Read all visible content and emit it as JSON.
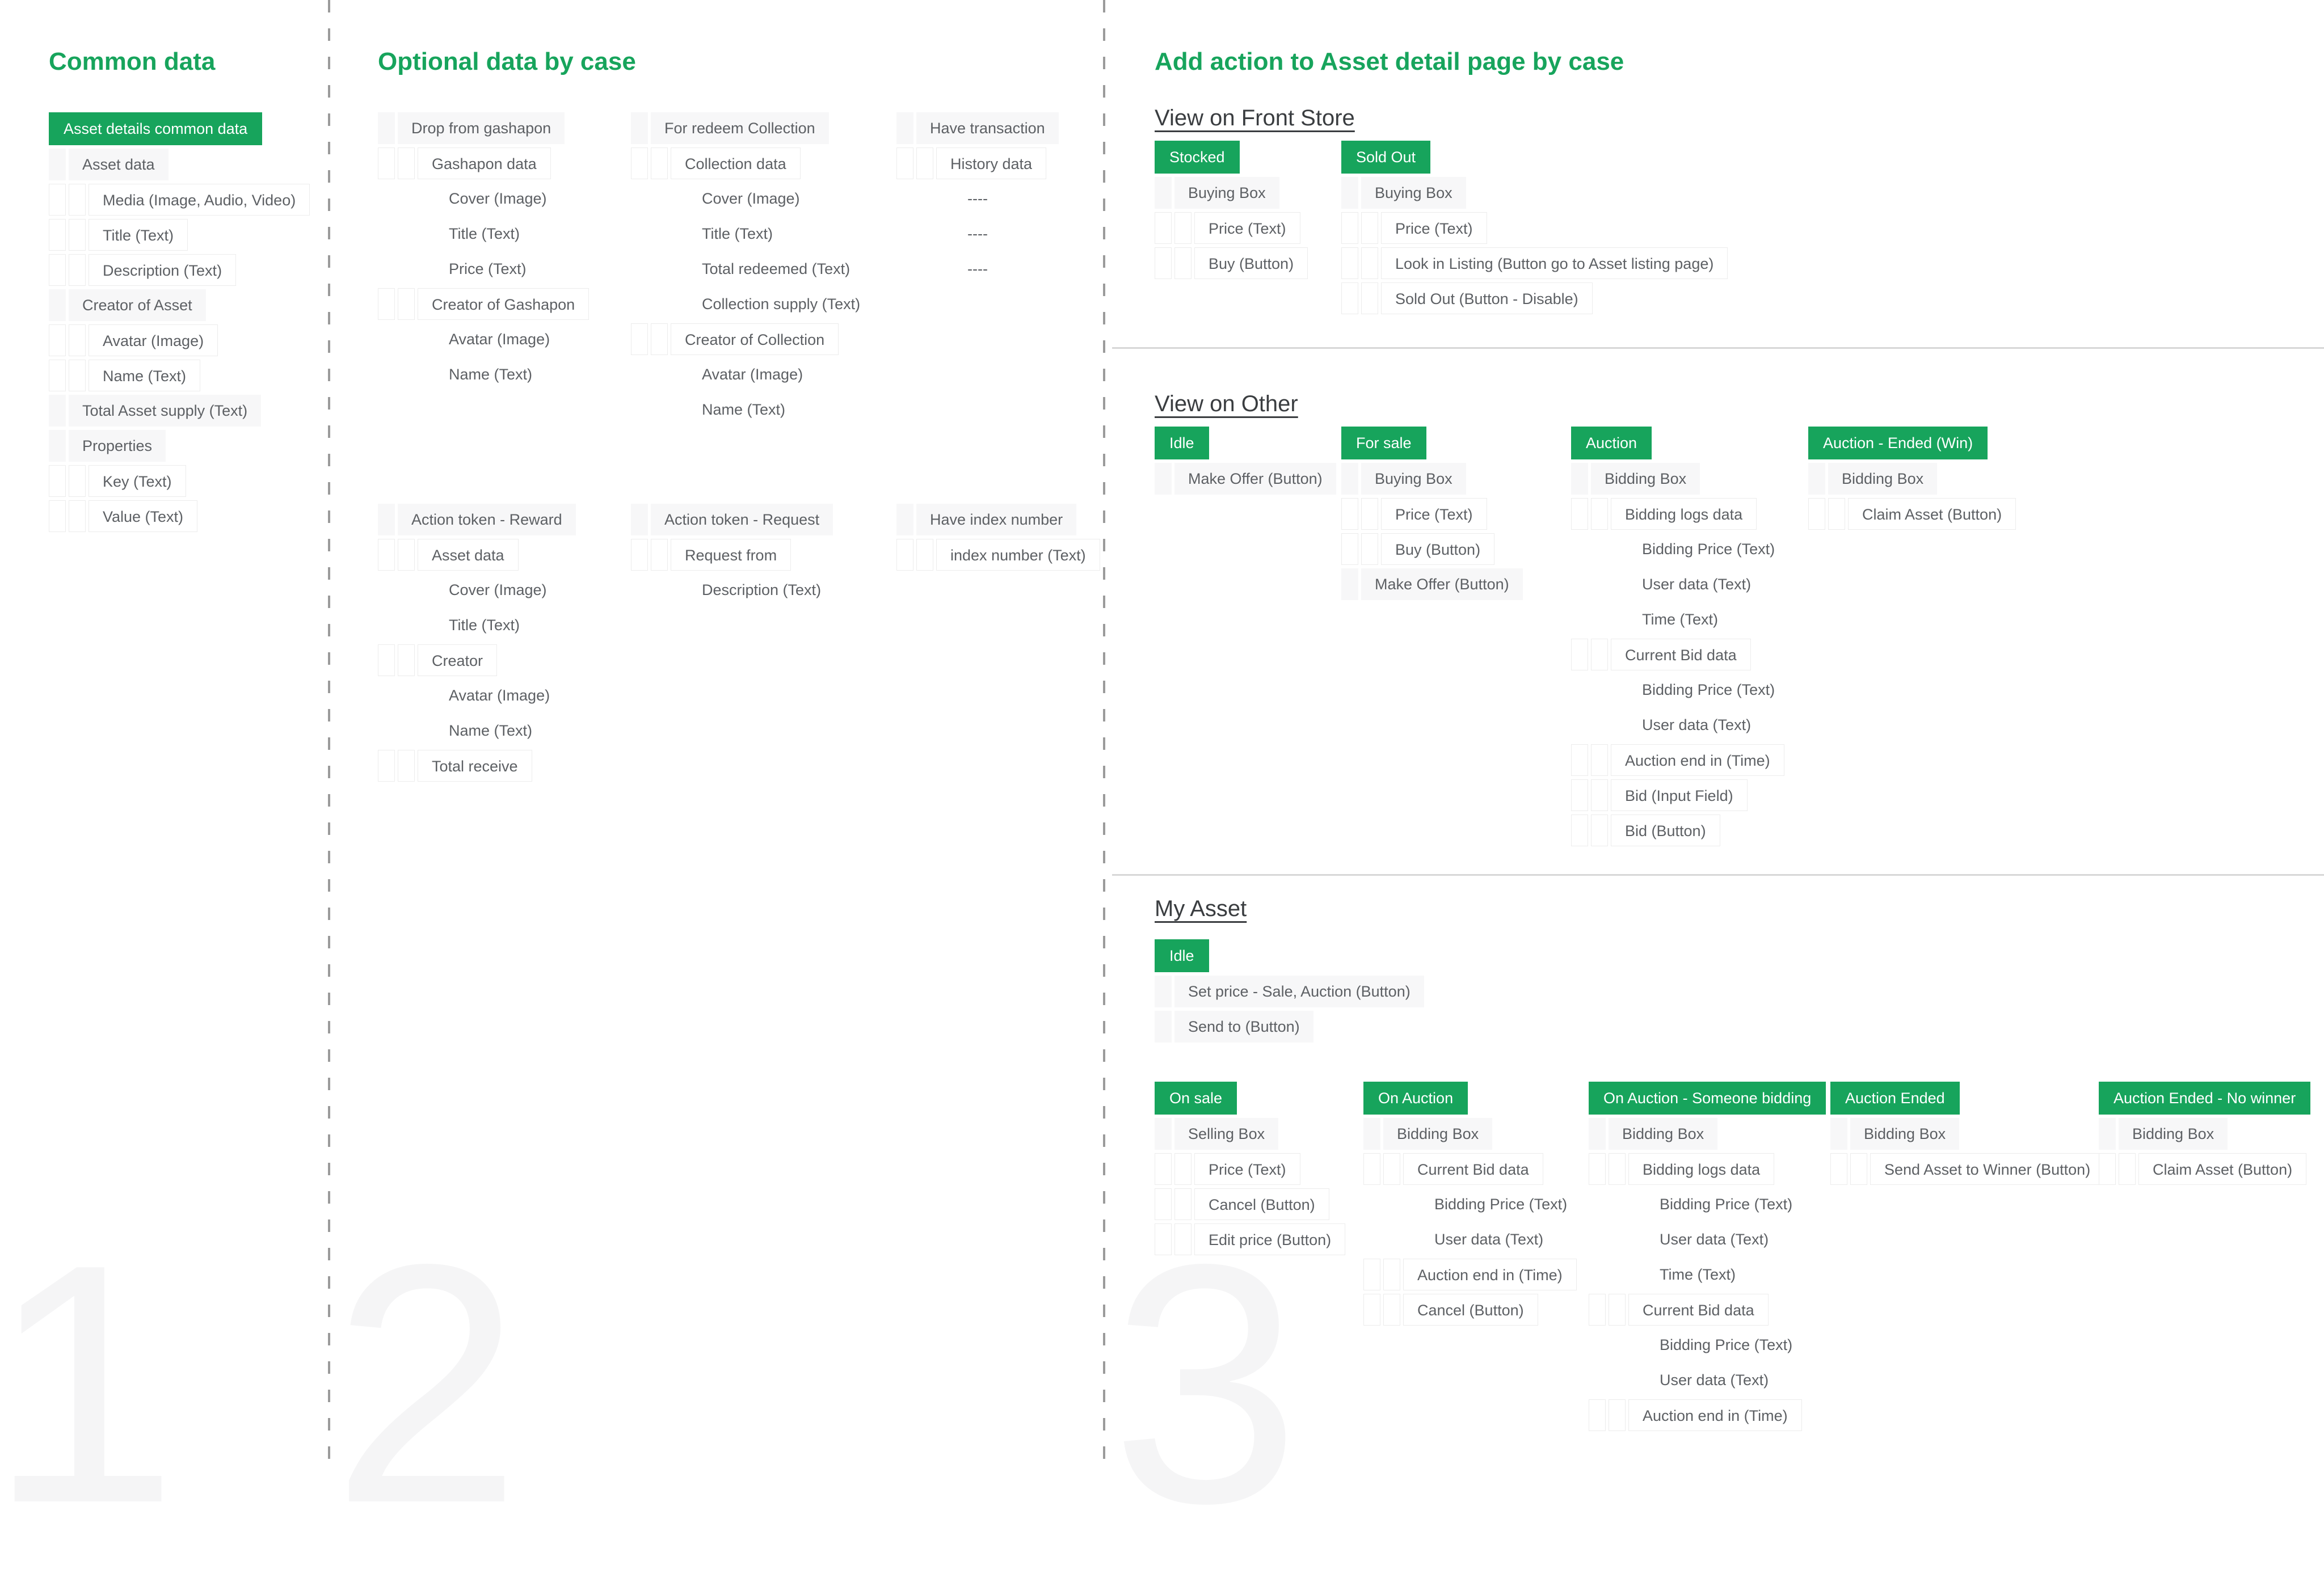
{
  "colors": {
    "accent_green": "#17a45c",
    "row_gray": "#f7f7f8",
    "row_border": "#ececec"
  },
  "background_numbers": [
    "1",
    "2",
    "3"
  ],
  "headings": {
    "col1": "Common data",
    "col2": "Optional data by case",
    "col3": "Add action to Asset detail page by case"
  },
  "section_titles": {
    "front_store": "View on Front Store",
    "other": "View on Other",
    "my_asset": "My Asset"
  },
  "groups": {
    "common": {
      "badge": "Asset details common data",
      "rows": [
        {
          "level": 1,
          "label": "Asset data"
        },
        {
          "level": 2,
          "label": "Media (Image, Audio, Video)"
        },
        {
          "level": 2,
          "label": "Title (Text)"
        },
        {
          "level": 2,
          "label": "Description (Text)"
        },
        {
          "level": 1,
          "label": "Creator of Asset"
        },
        {
          "level": 2,
          "label": "Avatar (Image)"
        },
        {
          "level": 2,
          "label": "Name (Text)"
        },
        {
          "level": 1,
          "label": "Total Asset supply (Text)"
        },
        {
          "level": 1,
          "label": "Properties"
        },
        {
          "level": 2,
          "label": "Key (Text)"
        },
        {
          "level": 2,
          "label": "Value (Text)"
        }
      ]
    },
    "gashapon": {
      "rows": [
        {
          "level": 1,
          "label": "Drop from gashapon"
        },
        {
          "level": 2,
          "label": "Gashapon data"
        },
        {
          "level": 3,
          "label": "Cover (Image)"
        },
        {
          "level": 3,
          "label": "Title (Text)"
        },
        {
          "level": 3,
          "label": "Price (Text)"
        },
        {
          "level": 2,
          "label": "Creator of Gashapon"
        },
        {
          "level": 3,
          "label": "Avatar (Image)"
        },
        {
          "level": 3,
          "label": "Name (Text)"
        }
      ]
    },
    "collection": {
      "rows": [
        {
          "level": 1,
          "label": "For redeem Collection"
        },
        {
          "level": 2,
          "label": "Collection data"
        },
        {
          "level": 3,
          "label": "Cover (Image)"
        },
        {
          "level": 3,
          "label": "Title (Text)"
        },
        {
          "level": 3,
          "label": "Total redeemed (Text)"
        },
        {
          "level": 3,
          "label": "Collection supply (Text)"
        },
        {
          "level": 2,
          "label": "Creator of Collection"
        },
        {
          "level": 3,
          "label": "Avatar (Image)"
        },
        {
          "level": 3,
          "label": "Name (Text)"
        }
      ]
    },
    "transaction": {
      "rows": [
        {
          "level": 1,
          "label": "Have transaction"
        },
        {
          "level": 2,
          "label": "History data"
        },
        {
          "level": 3,
          "label": "----"
        },
        {
          "level": 3,
          "label": "----"
        },
        {
          "level": 3,
          "label": "----"
        }
      ]
    },
    "reward": {
      "rows": [
        {
          "level": 1,
          "label": "Action token - Reward"
        },
        {
          "level": 2,
          "label": "Asset data"
        },
        {
          "level": 3,
          "label": "Cover (Image)"
        },
        {
          "level": 3,
          "label": "Title (Text)"
        },
        {
          "level": 2,
          "label": "Creator"
        },
        {
          "level": 3,
          "label": "Avatar (Image)"
        },
        {
          "level": 3,
          "label": "Name (Text)"
        },
        {
          "level": 2,
          "label": "Total receive"
        }
      ]
    },
    "request": {
      "rows": [
        {
          "level": 1,
          "label": "Action token - Request"
        },
        {
          "level": 2,
          "label": "Request from"
        },
        {
          "level": 3,
          "label": "Description (Text)"
        }
      ]
    },
    "index": {
      "rows": [
        {
          "level": 1,
          "label": "Have index number"
        },
        {
          "level": 2,
          "label": "index number (Text)"
        }
      ]
    },
    "stocked": {
      "badge": "Stocked",
      "rows": [
        {
          "level": 1,
          "label": "Buying Box"
        },
        {
          "level": 2,
          "label": "Price (Text)"
        },
        {
          "level": 2,
          "label": "Buy (Button)"
        }
      ]
    },
    "soldout": {
      "badge": "Sold Out",
      "rows": [
        {
          "level": 1,
          "label": "Buying Box"
        },
        {
          "level": 2,
          "label": "Price (Text)"
        },
        {
          "level": 2,
          "label": "Look in Listing (Button go to Asset listing page)"
        },
        {
          "level": 2,
          "label": "Sold Out (Button - Disable)"
        }
      ]
    },
    "idle_other": {
      "badge": "Idle",
      "rows": [
        {
          "level": 1,
          "label": "Make Offer (Button)"
        }
      ]
    },
    "forsale": {
      "badge": "For sale",
      "rows": [
        {
          "level": 1,
          "label": "Buying Box"
        },
        {
          "level": 2,
          "label": "Price (Text)"
        },
        {
          "level": 2,
          "label": "Buy (Button)"
        },
        {
          "level": 1,
          "label": "Make Offer (Button)"
        }
      ]
    },
    "auction": {
      "badge": "Auction",
      "rows": [
        {
          "level": 1,
          "label": "Bidding Box"
        },
        {
          "level": 2,
          "label": "Bidding logs data"
        },
        {
          "level": 3,
          "label": "Bidding Price (Text)"
        },
        {
          "level": 3,
          "label": "User data (Text)"
        },
        {
          "level": 3,
          "label": "Time (Text)"
        },
        {
          "level": 2,
          "label": "Current Bid data"
        },
        {
          "level": 3,
          "label": "Bidding Price (Text)"
        },
        {
          "level": 3,
          "label": "User data (Text)"
        },
        {
          "level": 2,
          "label": "Auction end in  (Time)"
        },
        {
          "level": 2,
          "label": "Bid (Input Field)"
        },
        {
          "level": 2,
          "label": "Bid (Button)"
        }
      ]
    },
    "auction_ended_win": {
      "badge": "Auction - Ended (Win)",
      "rows": [
        {
          "level": 1,
          "label": "Bidding Box"
        },
        {
          "level": 2,
          "label": "Claim Asset (Button)"
        }
      ]
    },
    "idle_myasset": {
      "badge": "Idle",
      "rows": [
        {
          "level": 1,
          "label": "Set price - Sale, Auction (Button)"
        },
        {
          "level": 1,
          "label": "Send to (Button)"
        }
      ]
    },
    "onsale": {
      "badge": "On sale",
      "rows": [
        {
          "level": 1,
          "label": "Selling Box"
        },
        {
          "level": 2,
          "label": "Price (Text)"
        },
        {
          "level": 2,
          "label": "Cancel (Button)"
        },
        {
          "level": 2,
          "label": "Edit price (Button)"
        }
      ]
    },
    "onauction": {
      "badge": "On Auction",
      "rows": [
        {
          "level": 1,
          "label": "Bidding Box"
        },
        {
          "level": 2,
          "label": "Current Bid data"
        },
        {
          "level": 3,
          "label": "Bidding Price (Text)"
        },
        {
          "level": 3,
          "label": "User data (Text)"
        },
        {
          "level": 2,
          "label": "Auction end in (Time)"
        },
        {
          "level": 2,
          "label": "Cancel (Button)"
        }
      ]
    },
    "someone_bidding": {
      "badge": "On Auction - Someone bidding",
      "rows": [
        {
          "level": 1,
          "label": "Bidding Box"
        },
        {
          "level": 2,
          "label": "Bidding logs data"
        },
        {
          "level": 3,
          "label": "Bidding Price (Text)"
        },
        {
          "level": 3,
          "label": "User data (Text)"
        },
        {
          "level": 3,
          "label": "Time (Text)"
        },
        {
          "level": 2,
          "label": "Current Bid data"
        },
        {
          "level": 3,
          "label": "Bidding Price (Text)"
        },
        {
          "level": 3,
          "label": "User data (Text)"
        },
        {
          "level": 2,
          "label": "Auction end in  (Time)"
        }
      ]
    },
    "auction_ended": {
      "badge": "Auction Ended",
      "rows": [
        {
          "level": 1,
          "label": "Bidding Box"
        },
        {
          "level": 2,
          "label": "Send Asset to Winner (Button)"
        }
      ]
    },
    "no_winner": {
      "badge": "Auction Ended - No winner",
      "rows": [
        {
          "level": 1,
          "label": "Bidding Box"
        },
        {
          "level": 2,
          "label": "Claim Asset (Button)"
        }
      ]
    }
  }
}
